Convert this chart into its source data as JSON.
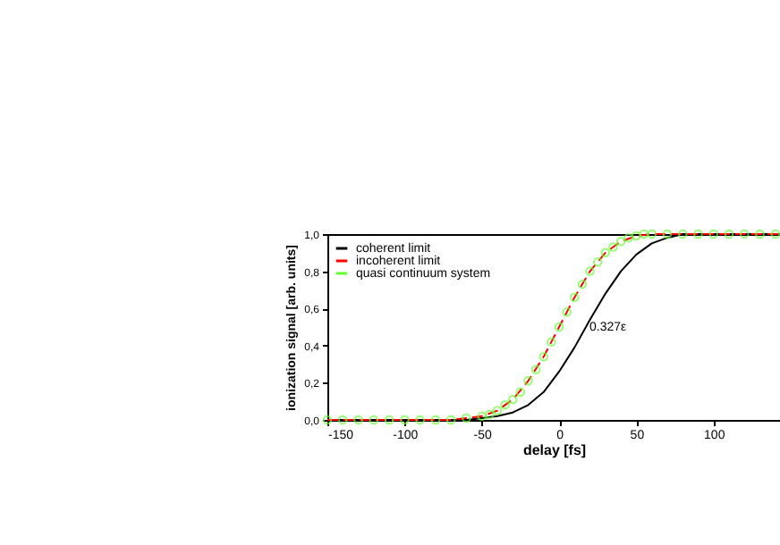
{
  "chart_data": {
    "type": "line",
    "xlabel": "delay [fs]",
    "ylabel": "ionization signal [arb. units]",
    "xlim": [
      -150,
      143
    ],
    "ylim": [
      0,
      1
    ],
    "xticks": [
      -150,
      -100,
      -50,
      0,
      50,
      100
    ],
    "yticks": [
      {
        "value": 0,
        "label": "0,0"
      },
      {
        "value": 0.2,
        "label": "0,2"
      },
      {
        "value": 0.4,
        "label": "0,4"
      },
      {
        "value": 0.6,
        "label": "0,6"
      },
      {
        "value": 0.8,
        "label": "0,8"
      },
      {
        "value": 1,
        "label": "1,0"
      }
    ],
    "legend": "top left",
    "grid": false,
    "annotations": [
      {
        "text": "0.327ε",
        "x": 0,
        "y": 0.5
      }
    ],
    "series": [
      {
        "name": "coherent limit",
        "color": "#000000",
        "line_style": "solid",
        "marker": "none",
        "x": [
          -150,
          -60,
          -50,
          -40,
          -30,
          -20,
          -10,
          0,
          10,
          20,
          30,
          40,
          50,
          60,
          70,
          80,
          90,
          143
        ],
        "values": [
          0,
          0,
          0.01,
          0.02,
          0.04,
          0.08,
          0.15,
          0.26,
          0.39,
          0.54,
          0.68,
          0.8,
          0.89,
          0.95,
          0.98,
          1,
          1,
          1
        ]
      },
      {
        "name": "incoherent limit",
        "color": "#ff0000",
        "line_style": "dashed",
        "marker": "none",
        "x": [
          -150,
          -70,
          -60,
          -50,
          -40,
          -30,
          -20,
          -10,
          0,
          10,
          20,
          30,
          40,
          50,
          60,
          143
        ],
        "values": [
          0,
          0,
          0.01,
          0.02,
          0.05,
          0.11,
          0.21,
          0.34,
          0.5,
          0.66,
          0.8,
          0.9,
          0.96,
          0.99,
          1,
          1
        ]
      },
      {
        "name": "quasi continuum system",
        "type": "scatter",
        "color": "#66ff33",
        "marker": "circle",
        "x": [
          -150,
          -140,
          -130,
          -120,
          -110,
          -100,
          -90,
          -80,
          -70,
          -60,
          -50,
          -45,
          -40,
          -35,
          -30,
          -25,
          -20,
          -15,
          -10,
          -5,
          0,
          5,
          10,
          15,
          20,
          25,
          30,
          35,
          40,
          45,
          50,
          55,
          60,
          70,
          80,
          90,
          100,
          110,
          120,
          130,
          140
        ],
        "values": [
          0,
          0,
          0,
          0,
          0,
          0,
          0,
          0,
          0,
          0.01,
          0.02,
          0.03,
          0.05,
          0.08,
          0.11,
          0.15,
          0.21,
          0.27,
          0.34,
          0.42,
          0.5,
          0.58,
          0.66,
          0.73,
          0.8,
          0.85,
          0.9,
          0.93,
          0.96,
          0.98,
          0.99,
          1,
          1,
          1,
          1,
          1,
          1,
          1,
          1,
          1,
          1
        ]
      }
    ]
  }
}
